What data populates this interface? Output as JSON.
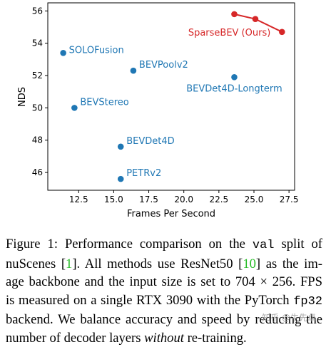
{
  "chart_data": {
    "type": "scatter",
    "xlabel": "Frames Per Second",
    "ylabel": "NDS",
    "xlim": [
      10.3,
      27.9
    ],
    "ylim": [
      44.9,
      56.5
    ],
    "xticks": [
      12.5,
      15.0,
      17.5,
      20.0,
      22.5,
      25.0,
      27.5
    ],
    "xtick_labels": [
      "12.5",
      "15.0",
      "17.5",
      "20.0",
      "22.5",
      "25.0",
      "27.5"
    ],
    "yticks": [
      46,
      48,
      50,
      52,
      54,
      56
    ],
    "ytick_labels": [
      "46",
      "48",
      "50",
      "52",
      "54",
      "56"
    ],
    "grid": false,
    "colors": {
      "baseline": "#1f77b4",
      "ours": "#d62728"
    },
    "points": [
      {
        "label": "SOLOFusion",
        "x": 11.4,
        "y": 53.4
      },
      {
        "label": "BEVPoolv2",
        "x": 16.4,
        "y": 52.3
      },
      {
        "label": "BEVDet4D-Longterm",
        "x": 23.6,
        "y": 51.9
      },
      {
        "label": "BEVStereo",
        "x": 12.2,
        "y": 50.0
      },
      {
        "label": "BEVDet4D",
        "x": 15.5,
        "y": 47.6
      },
      {
        "label": "PETRv2",
        "x": 15.5,
        "y": 45.6
      }
    ],
    "series": [
      {
        "name": "SparseBEV (Ours)",
        "x": [
          23.6,
          25.1,
          27.0
        ],
        "y": [
          55.8,
          55.5,
          54.7
        ]
      }
    ]
  },
  "caption": {
    "line1_a": "Figure 1:  Performance comparison on the ",
    "line1_code": "val",
    "line1_b": " split of",
    "line2_a": "nuScenes [",
    "line2_ref1": "1",
    "line2_b": "].  All methods use ResNet50 [",
    "line2_ref2": "10",
    "line2_c": "] as the im-",
    "line3": "age backbone and the input size is set to 704 × 256.  FPS",
    "line4_a": "is measured on a single RTX 3090 with the PyTorch ",
    "line4_code": "fp32",
    "line5": "backend.  We balance accuracy and speed by reducing the",
    "line6_a": "number of decoder layers ",
    "line6_italic": "without",
    "line6_b": " re-training."
  },
  "watermark": "知乎 @牛先卓"
}
